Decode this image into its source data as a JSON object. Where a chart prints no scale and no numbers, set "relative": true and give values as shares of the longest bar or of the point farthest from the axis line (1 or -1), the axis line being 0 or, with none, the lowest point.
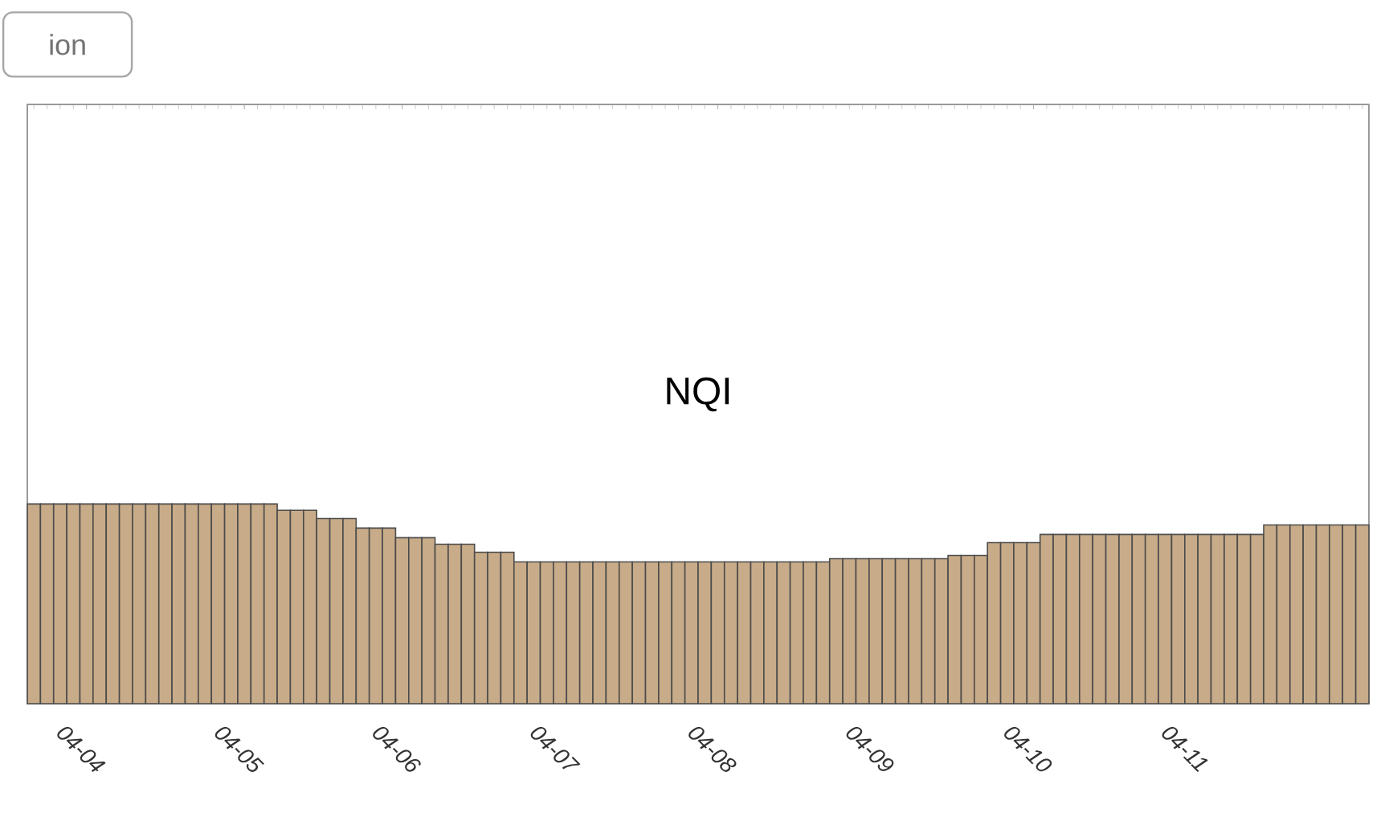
{
  "chart_data": {
    "type": "bar",
    "title": "NQI",
    "relative": true,
    "color": "#c8ab88",
    "annotations": [
      "ion"
    ],
    "categories": [
      null,
      null,
      null,
      null,
      "04-04",
      null,
      null,
      null,
      null,
      null,
      null,
      null,
      null,
      null,
      null,
      null,
      "04-05",
      null,
      null,
      null,
      null,
      null,
      null,
      null,
      null,
      null,
      null,
      null,
      "04-06",
      null,
      null,
      null,
      null,
      null,
      null,
      null,
      null,
      null,
      null,
      null,
      "04-07",
      null,
      null,
      null,
      null,
      null,
      null,
      null,
      null,
      null,
      null,
      null,
      "04-08",
      null,
      null,
      null,
      null,
      null,
      null,
      null,
      null,
      null,
      null,
      null,
      "04-09",
      null,
      null,
      null,
      null,
      null,
      null,
      null,
      null,
      null,
      null,
      null,
      "04-10",
      null,
      null,
      null,
      null,
      null,
      null,
      null,
      null,
      null,
      null,
      null,
      "04-11",
      null,
      null,
      null,
      null,
      null,
      null,
      null,
      null,
      null,
      null,
      null,
      null,
      null
    ],
    "values": [
      1,
      1,
      1,
      1,
      1,
      1,
      1,
      1,
      1,
      1,
      1,
      1,
      1,
      1,
      1,
      1,
      1,
      1,
      1,
      0.968,
      0.968,
      0.968,
      0.927,
      0.927,
      0.927,
      0.879,
      0.879,
      0.879,
      0.831,
      0.831,
      0.831,
      0.798,
      0.798,
      0.798,
      0.758,
      0.758,
      0.758,
      0.71,
      0.71,
      0.71,
      0.71,
      0.71,
      0.71,
      0.71,
      0.71,
      0.71,
      0.71,
      0.71,
      0.71,
      0.71,
      0.71,
      0.71,
      0.71,
      0.71,
      0.71,
      0.71,
      0.71,
      0.71,
      0.71,
      0.71,
      0.71,
      0.726,
      0.726,
      0.726,
      0.726,
      0.726,
      0.726,
      0.726,
      0.726,
      0.726,
      0.742,
      0.742,
      0.742,
      0.806,
      0.806,
      0.806,
      0.806,
      0.847,
      0.847,
      0.847,
      0.847,
      0.847,
      0.847,
      0.847,
      0.847,
      0.847,
      0.847,
      0.847,
      0.847,
      0.847,
      0.847,
      0.847,
      0.847,
      0.847,
      0.895,
      0.895,
      0.895,
      0.895,
      0.895,
      0.895,
      0.895,
      0.895
    ]
  }
}
